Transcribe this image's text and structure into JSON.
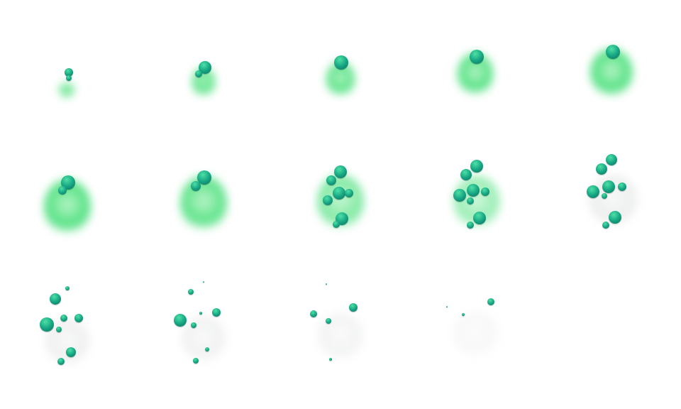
{
  "sprite_sheet": {
    "frame_count": 14,
    "columns": 5,
    "rows": 3,
    "colors": {
      "background": "#ffffff",
      "smoke_green": "#4fe07f",
      "smoke_gray": "#d8dcd9",
      "sphere_light": "#4fe0a6",
      "sphere_mid": "#17a884",
      "sphere_dark": "#0b6d5c"
    }
  }
}
